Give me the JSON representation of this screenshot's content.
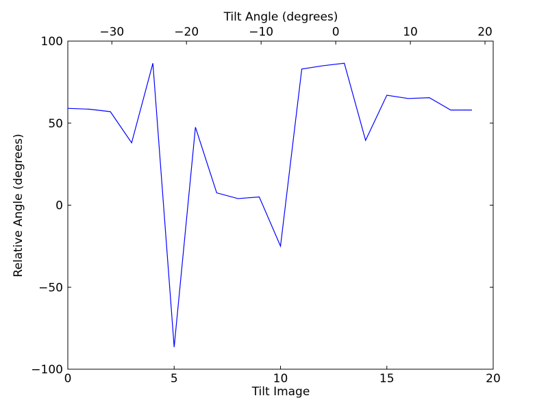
{
  "colors": {
    "line": "#0000ff",
    "axis": "#000000",
    "background": "#ffffff",
    "text": "#000000"
  },
  "chart_data": {
    "type": "line",
    "title": "",
    "x": [
      0,
      1,
      2,
      3,
      4,
      5,
      6,
      7,
      8,
      9,
      10,
      11,
      12,
      13,
      14,
      15,
      16,
      17,
      18,
      19
    ],
    "series": [
      {
        "name": "relative-angle",
        "color": "#0000ff",
        "values": [
          59,
          58.5,
          57,
          38,
          86.5,
          -86.5,
          47.5,
          7.5,
          4,
          5,
          -25,
          83,
          85,
          86.5,
          39.5,
          67,
          65,
          65.5,
          58,
          58
        ]
      }
    ],
    "axes": {
      "bottom": {
        "label": "Tilt Image",
        "lim": [
          0,
          20
        ],
        "tick_values": [
          0,
          5,
          10,
          15,
          20
        ],
        "tick_labels": [
          "0",
          "5",
          "10",
          "15",
          "20"
        ]
      },
      "top": {
        "label": "Tilt Angle (degrees)",
        "lim": [
          -35.9,
          21.1
        ],
        "tick_values": [
          -30,
          -20,
          -10,
          0,
          10,
          20
        ],
        "tick_labels": [
          "−30",
          "−20",
          "−10",
          "0",
          "10",
          "20"
        ]
      },
      "left": {
        "label": "Relative Angle (degrees)",
        "lim": [
          -100,
          100
        ],
        "tick_values": [
          100,
          50,
          0,
          -50,
          -100
        ],
        "tick_labels": [
          "100",
          "50",
          "0",
          "−50",
          "−100"
        ]
      }
    },
    "grid": false,
    "legend": "none",
    "marker": "none"
  }
}
